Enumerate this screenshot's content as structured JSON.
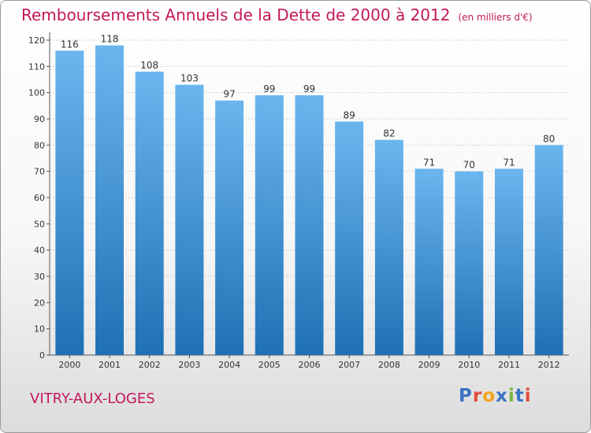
{
  "title": "Remboursements Annuels de la Dette de 2000 à 2012",
  "unit": "(en milliers d'€)",
  "city": "VITRY-AUX-LOGES",
  "logo": {
    "letters": [
      "P",
      "r",
      "o",
      "x",
      "i",
      "t",
      "i"
    ],
    "colors": [
      "#3b73c4",
      "#e24a3b",
      "#f2a41c",
      "#3b73c4",
      "#7cb342",
      "#3b73c4",
      "#e24a3b"
    ]
  },
  "colors": {
    "bar_top": "#6bb6ee",
    "bar_bottom": "#1f70b4",
    "title": "#c2185b"
  },
  "chart_data": {
    "type": "bar",
    "title": "Remboursements Annuels de la Dette de 2000 à 2012",
    "xlabel": "",
    "ylabel": "",
    "categories": [
      "2000",
      "2001",
      "2002",
      "2003",
      "2004",
      "2005",
      "2006",
      "2007",
      "2008",
      "2009",
      "2010",
      "2011",
      "2012"
    ],
    "values": [
      116,
      118,
      108,
      103,
      97,
      99,
      99,
      89,
      82,
      71,
      70,
      71,
      80
    ],
    "ylim": [
      0,
      120
    ],
    "yticks": [
      0,
      10,
      20,
      30,
      40,
      50,
      60,
      70,
      80,
      90,
      100,
      110,
      120
    ],
    "grid": true
  }
}
